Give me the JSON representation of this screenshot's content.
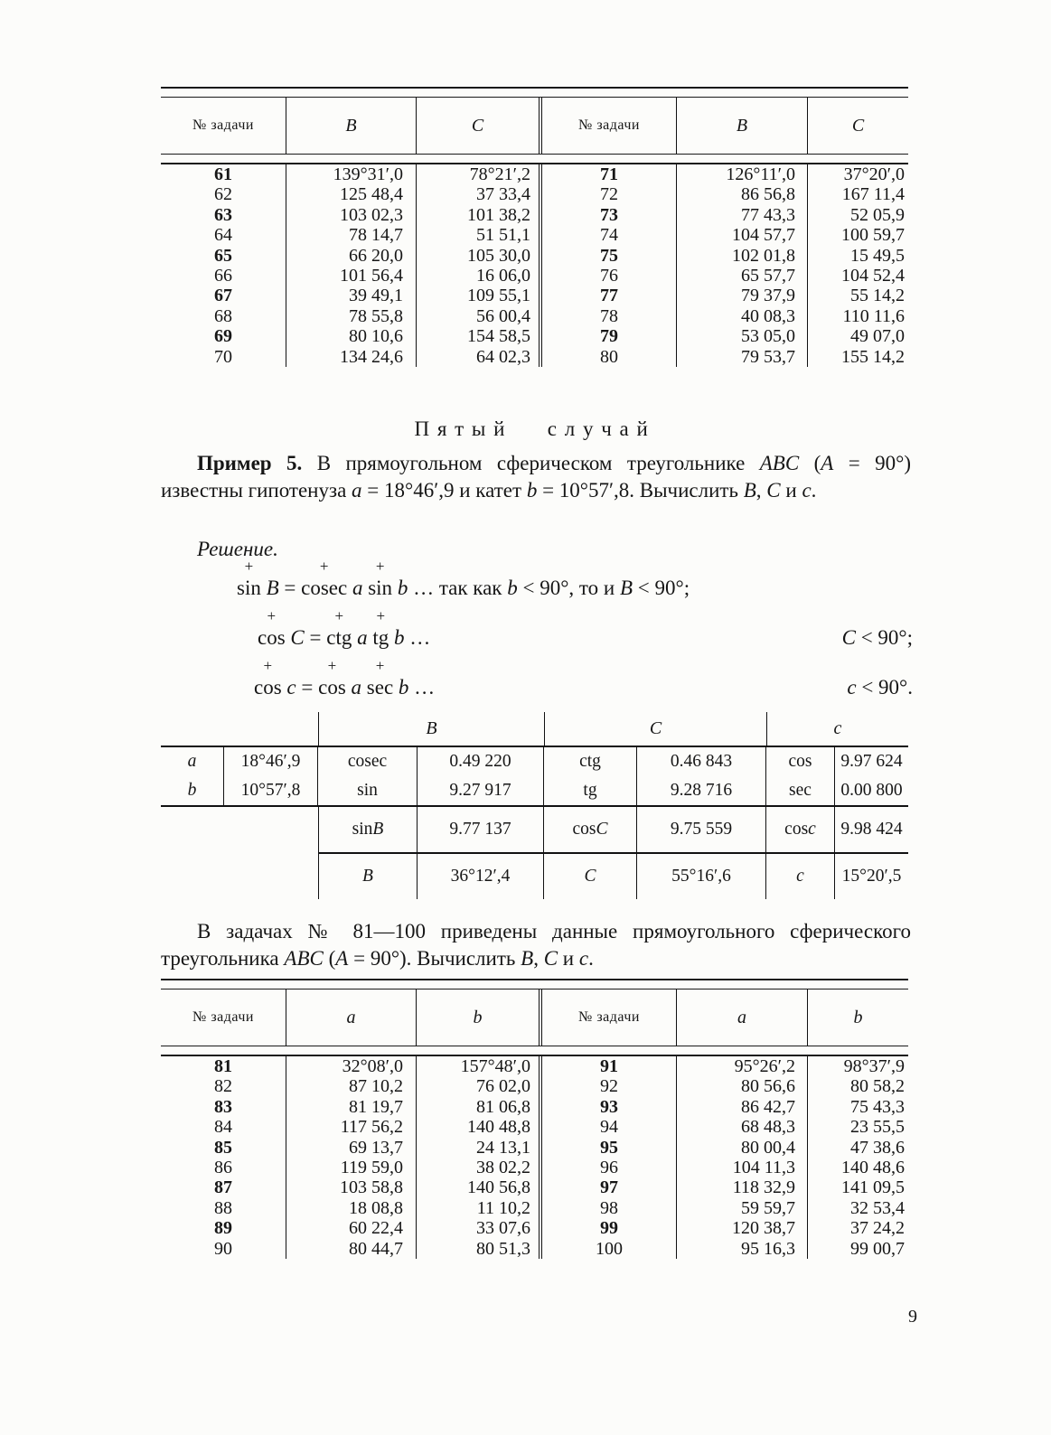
{
  "page_number": "9",
  "heading": "Пятый случай",
  "para1": [
    {
      "t": "Пример 5.",
      "b": 1
    },
    {
      "t": " В прямоугольном сферическом треугольнике "
    },
    {
      "t": "ABC",
      "i": 1
    },
    {
      "t": " ("
    },
    {
      "t": "A",
      "i": 1
    },
    {
      "t": " = 90°) известны гипотенуза "
    },
    {
      "t": "a",
      "i": 1
    },
    {
      "t": " = 18°46′,9 и катет "
    },
    {
      "t": "b",
      "i": 1
    },
    {
      "t": " = 10°57′,8. Вычислить "
    },
    {
      "t": "B",
      "i": 1
    },
    {
      "t": ", "
    },
    {
      "t": "C",
      "i": 1
    },
    {
      "t": " и "
    },
    {
      "t": "c",
      "i": 1
    },
    {
      "t": "."
    }
  ],
  "solution_label": "Решение.",
  "equations": [
    {
      "left": [
        {
          "t": "sin",
          "plus": 1
        },
        {
          "t": " "
        },
        {
          "t": "B",
          "i": 1
        },
        {
          "t": " = "
        },
        {
          "t": "cosec",
          "plus": 1
        },
        {
          "t": " "
        },
        {
          "t": "a",
          "i": 1
        },
        {
          "t": " "
        },
        {
          "t": "sin",
          "plus": 1
        },
        {
          "t": " "
        },
        {
          "t": "b",
          "i": 1
        },
        {
          "t": " … так как "
        },
        {
          "t": "b",
          "i": 1
        },
        {
          "t": " < 90°, то и "
        },
        {
          "t": "B",
          "i": 1
        },
        {
          "t": " < 90°;"
        }
      ],
      "right": []
    },
    {
      "left": [
        {
          "t": "cos",
          "plus": 1
        },
        {
          "t": " "
        },
        {
          "t": "C",
          "i": 1
        },
        {
          "t": " = "
        },
        {
          "t": "ctg",
          "plus": 1
        },
        {
          "t": " "
        },
        {
          "t": "a",
          "i": 1
        },
        {
          "t": " "
        },
        {
          "t": "tg",
          "plus": 1
        },
        {
          "t": " "
        },
        {
          "t": "b",
          "i": 1
        },
        {
          "t": " …"
        }
      ],
      "right": [
        {
          "t": "C",
          "i": 1
        },
        {
          "t": " < 90°;"
        }
      ]
    },
    {
      "left": [
        {
          "t": "cos",
          "plus": 1
        },
        {
          "t": " "
        },
        {
          "t": "c",
          "i": 1
        },
        {
          "t": " = "
        },
        {
          "t": "cos",
          "plus": 1
        },
        {
          "t": " "
        },
        {
          "t": "a",
          "i": 1
        },
        {
          "t": " "
        },
        {
          "t": "sec",
          "plus": 1
        },
        {
          "t": " "
        },
        {
          "t": "b",
          "i": 1
        },
        {
          "t": " …"
        }
      ],
      "right": [
        {
          "t": "c",
          "i": 1
        },
        {
          "t": " < 90°."
        }
      ]
    }
  ],
  "para2": [
    {
      "t": "В задачах № 81—100 приведены данные прямоугольного сферического треугольника "
    },
    {
      "t": "ABC",
      "i": 1
    },
    {
      "t": " ("
    },
    {
      "t": "A",
      "i": 1
    },
    {
      "t": " = 90°). Вычислить "
    },
    {
      "t": "B",
      "i": 1
    },
    {
      "t": ", "
    },
    {
      "t": "C",
      "i": 1
    },
    {
      "t": " и "
    },
    {
      "t": "c",
      "i": 1
    },
    {
      "t": "."
    }
  ],
  "table1": {
    "headers": [
      "№ задачи",
      "B",
      "C",
      "№ задачи",
      "B",
      "C"
    ],
    "rows": [
      [
        [
          {
            "t": "61",
            "b": 1
          }
        ],
        "139°31′,0",
        "78°21′,2",
        [
          {
            "t": "71",
            "b": 1
          }
        ],
        "126°11′,0",
        "37°20′,0"
      ],
      [
        "62",
        "125 48,4",
        "37 33,4",
        "72",
        "86 56,8",
        "167 11,4"
      ],
      [
        [
          {
            "t": "63",
            "b": 1
          }
        ],
        "103 02,3",
        "101 38,2",
        [
          {
            "t": "73",
            "b": 1
          }
        ],
        "77 43,3",
        "52 05,9"
      ],
      [
        "64",
        "78 14,7",
        "51 51,1",
        "74",
        "104 57,7",
        "100 59,7"
      ],
      [
        [
          {
            "t": "65",
            "b": 1
          }
        ],
        "66 20,0",
        "105 30,0",
        [
          {
            "t": "75",
            "b": 1
          }
        ],
        "102 01,8",
        "15 49,5"
      ],
      [
        "66",
        "101 56,4",
        "16 06,0",
        "76",
        "65 57,7",
        "104 52,4"
      ],
      [
        [
          {
            "t": "67",
            "b": 1
          }
        ],
        "39 49,1",
        "109 55,1",
        [
          {
            "t": "77",
            "b": 1
          }
        ],
        "79 37,9",
        "55 14,2"
      ],
      [
        "68",
        "78 55,8",
        "56 00,4",
        "78",
        "40 08,3",
        "110 11,6"
      ],
      [
        [
          {
            "t": "69",
            "b": 1
          }
        ],
        "80 10,6",
        "154 58,5",
        [
          {
            "t": "79",
            "b": 1
          }
        ],
        "53 05,0",
        "49 07,0"
      ],
      [
        "70",
        "134 24,6",
        "64 02,3",
        "80",
        "79 53,7",
        "155 14,2"
      ]
    ]
  },
  "table2": {
    "headers": [
      "B",
      "C",
      "c"
    ],
    "rows_ab": [
      [
        [
          {
            "t": "a",
            "i": 1
          }
        ],
        "18°46′,9",
        "cosec",
        "0.49 220",
        "ctg",
        "0.46 843",
        "cos",
        "9.97 624"
      ],
      [
        [
          {
            "t": "b",
            "i": 1
          }
        ],
        "10°57′,8",
        "sin",
        "9.27 917",
        "tg",
        "9.28 716",
        "sec",
        "0.00 800"
      ]
    ],
    "row_sin": [
      [
        {
          "t": "sin "
        },
        {
          "t": "B",
          "i": 1
        }
      ],
      "9.77 137",
      [
        {
          "t": "cos "
        },
        {
          "t": "C",
          "i": 1
        }
      ],
      "9.75 559",
      [
        {
          "t": "cos "
        },
        {
          "t": "c",
          "i": 1
        }
      ],
      "9.98 424"
    ],
    "row_result": [
      [
        {
          "t": "B",
          "i": 1
        }
      ],
      "36°12′,4",
      [
        {
          "t": "C",
          "i": 1
        }
      ],
      "55°16′,6",
      [
        {
          "t": "c",
          "i": 1
        }
      ],
      "15°20′,5"
    ]
  },
  "table3": {
    "headers": [
      "№ задачи",
      "a",
      "b",
      "№ задачи",
      "a",
      "b"
    ],
    "rows": [
      [
        [
          {
            "t": "81",
            "b": 1
          }
        ],
        "32°08′,0",
        "157°48′,0",
        [
          {
            "t": "91",
            "b": 1
          }
        ],
        "95°26′,2",
        "98°37′,9"
      ],
      [
        "82",
        "87 10,2",
        "76 02,0",
        "92",
        "80 56,6",
        "80 58,2"
      ],
      [
        [
          {
            "t": "83",
            "b": 1
          }
        ],
        "81 19,7",
        "81 06,8",
        [
          {
            "t": "93",
            "b": 1
          }
        ],
        "86 42,7",
        "75 43,3"
      ],
      [
        "84",
        "117 56,2",
        "140 48,8",
        "94",
        "68 48,3",
        "23 55,5"
      ],
      [
        [
          {
            "t": "85",
            "b": 1
          }
        ],
        "69 13,7",
        "24 13,1",
        [
          {
            "t": "95",
            "b": 1
          }
        ],
        "80 00,4",
        "47 38,6"
      ],
      [
        "86",
        "119 59,0",
        "38 02,2",
        "96",
        "104 11,3",
        "140 48,6"
      ],
      [
        [
          {
            "t": "87",
            "b": 1
          }
        ],
        "103 58,8",
        "140 56,8",
        [
          {
            "t": "97",
            "b": 1
          }
        ],
        "118 32,9",
        "141 09,5"
      ],
      [
        "88",
        "18 08,8",
        "11 10,2",
        "98",
        "59 59,7",
        "32 53,4"
      ],
      [
        [
          {
            "t": "89",
            "b": 1
          }
        ],
        "60 22,4",
        "33 07,6",
        [
          {
            "t": "99",
            "b": 1
          }
        ],
        "120 38,7",
        "37 24,2"
      ],
      [
        "90",
        "80 44,7",
        "80 51,3",
        "100",
        "95 16,3",
        "99 00,7"
      ]
    ]
  }
}
